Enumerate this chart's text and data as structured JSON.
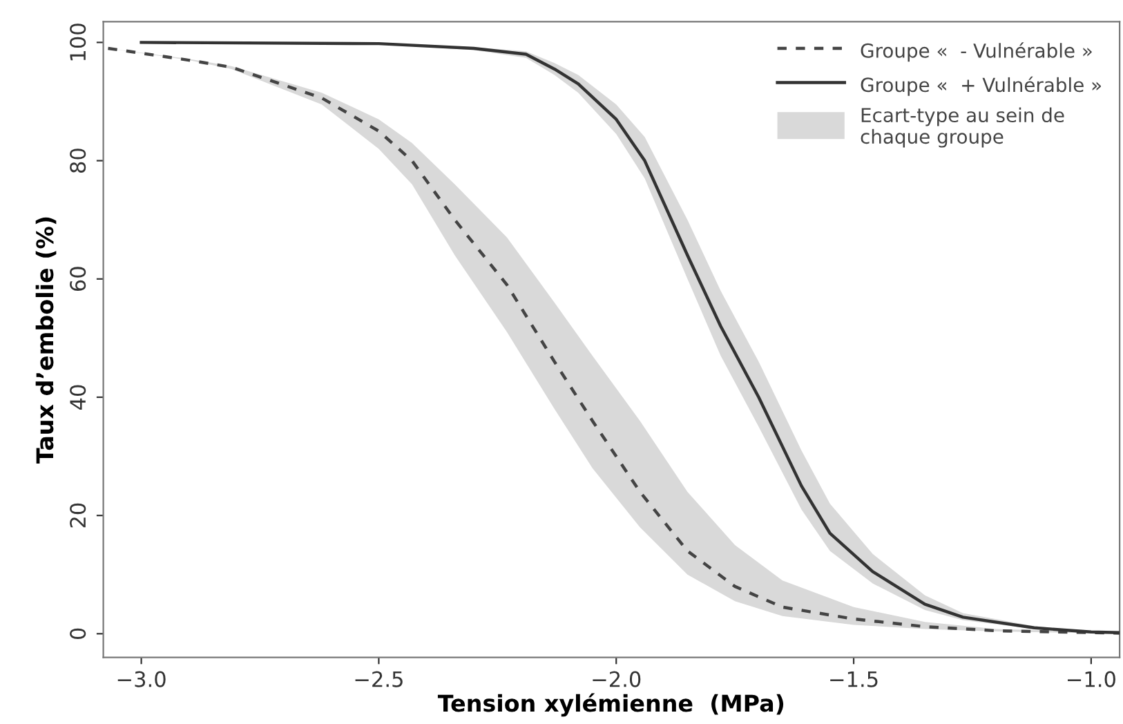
{
  "chart_data": {
    "type": "line",
    "xlabel": "Tension xylémienne  (MPa)",
    "ylabel": "Taux d’embolie (%)",
    "xlim": [
      -3.08,
      -0.94
    ],
    "ylim": [
      -4,
      103.5
    ],
    "xticks": [
      {
        "value": -3.0,
        "label": "−3.0"
      },
      {
        "value": -2.5,
        "label": "−2.5"
      },
      {
        "value": -2.0,
        "label": "−2.0"
      },
      {
        "value": -1.5,
        "label": "−1.5"
      },
      {
        "value": -1.0,
        "label": "−1.0"
      }
    ],
    "yticks": [
      0,
      20,
      40,
      60,
      80,
      100
    ],
    "grid": false,
    "legend": "top right",
    "marker": "none",
    "annotations": [
      "Ecart-type au sein de chaque groupe"
    ],
    "series": [
      {
        "name": "Groupe «  - Vulnérable »",
        "color": "#444444",
        "line_style": "dashed",
        "x": [
          -3.07,
          -2.9,
          -2.81,
          -2.62,
          -2.5,
          -2.43,
          -2.34,
          -2.23,
          -2.13,
          -2.05,
          -1.95,
          -1.85,
          -1.75,
          -1.65,
          -1.5,
          -1.35,
          -1.2,
          -1.0,
          -0.94
        ],
        "values": [
          99,
          97,
          95.8,
          90.6,
          85,
          80,
          70,
          59,
          46,
          36,
          24,
          14,
          8,
          4.5,
          2.5,
          1.2,
          0.5,
          0.2,
          0.1
        ],
        "lower": [
          99,
          97,
          95.5,
          89.5,
          82,
          76,
          64,
          51,
          38,
          28,
          18,
          10,
          5.5,
          3,
          1.5,
          0.8,
          0.4,
          0.1,
          0.1
        ],
        "upper": [
          99,
          97.2,
          96,
          91.5,
          87,
          83,
          76,
          67,
          56,
          47,
          36,
          24,
          15,
          9,
          4.5,
          2,
          0.8,
          0.3,
          0.2
        ]
      },
      {
        "name": "Groupe «  + Vulnérable »",
        "color": "#333333",
        "line_style": "solid",
        "x": [
          -3.0,
          -2.5,
          -2.3,
          -2.19,
          -2.13,
          -2.08,
          -2.0,
          -1.94,
          -1.85,
          -1.78,
          -1.7,
          -1.61,
          -1.55,
          -1.46,
          -1.35,
          -1.27,
          -1.12,
          -1.0,
          -0.94
        ],
        "values": [
          100,
          99.8,
          99,
          98,
          95.5,
          93,
          87,
          80,
          64,
          52,
          40,
          25,
          17,
          10.5,
          5,
          2.8,
          1,
          0.3,
          0.2
        ],
        "lower": [
          100,
          99.7,
          98.7,
          97.4,
          94.5,
          91.5,
          84.5,
          77,
          60,
          47,
          35,
          21,
          14,
          8.5,
          4,
          2.3,
          0.8,
          0.2,
          0.1
        ],
        "upper": [
          100,
          99.9,
          99.2,
          98.5,
          96.5,
          94.5,
          89.5,
          84,
          70,
          58,
          46,
          31,
          22,
          13.5,
          6.5,
          3.5,
          1.3,
          0.4,
          0.3
        ]
      }
    ]
  }
}
